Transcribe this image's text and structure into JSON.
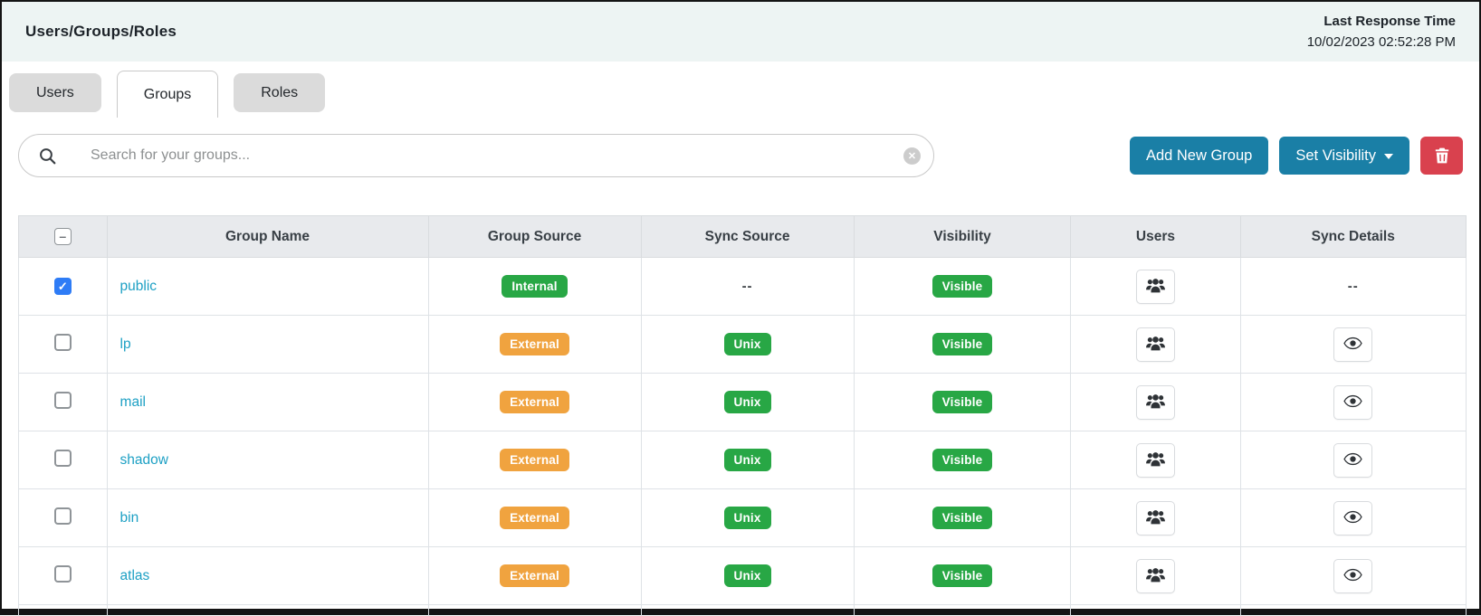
{
  "window": {
    "title": "Users/Groups/Roles"
  },
  "topbar": {
    "last_response_label": "Last Response Time",
    "last_response_value": "10/02/2023 02:52:28 PM"
  },
  "tabs": [
    {
      "label": "Users",
      "active": false
    },
    {
      "label": "Groups",
      "active": true
    },
    {
      "label": "Roles",
      "active": false
    }
  ],
  "toolbar": {
    "search_placeholder": "Search for your groups...",
    "search_value": "",
    "add_new_group_label": "Add New Group",
    "set_visibility_label": "Set Visibility",
    "icons": {
      "search": "search-icon",
      "clear": "clear-search-icon",
      "caret": "caret-down-icon",
      "trash": "trash-icon"
    }
  },
  "table": {
    "select_all_state": "indeterminate",
    "columns": [
      "Group Name",
      "Group Source",
      "Sync Source",
      "Visibility",
      "Users",
      "Sync Details"
    ],
    "rows": [
      {
        "group_name": "public",
        "selected": true,
        "group_source": "Internal",
        "sync_source": "--",
        "visibility": "Visible",
        "users": "users-group-icon",
        "sync_details": "--"
      },
      {
        "group_name": "lp",
        "selected": false,
        "group_source": "External",
        "sync_source": "Unix",
        "visibility": "Visible",
        "users": "users-group-icon",
        "sync_details": "eye-icon"
      },
      {
        "group_name": "mail",
        "selected": false,
        "group_source": "External",
        "sync_source": "Unix",
        "visibility": "Visible",
        "users": "users-group-icon",
        "sync_details": "eye-icon"
      },
      {
        "group_name": "shadow",
        "selected": false,
        "group_source": "External",
        "sync_source": "Unix",
        "visibility": "Visible",
        "users": "users-group-icon",
        "sync_details": "eye-icon"
      },
      {
        "group_name": "bin",
        "selected": false,
        "group_source": "External",
        "sync_source": "Unix",
        "visibility": "Visible",
        "users": "users-group-icon",
        "sync_details": "eye-icon"
      },
      {
        "group_name": "atlas",
        "selected": false,
        "group_source": "External",
        "sync_source": "Unix",
        "visibility": "Visible",
        "users": "users-group-icon",
        "sync_details": "eye-icon"
      }
    ]
  },
  "colors": {
    "accent_blue": "#1a7fa6",
    "danger_red": "#d9414e",
    "badge_green": "#28a745",
    "badge_orange": "#f0a33f",
    "link_teal": "#1da0c4",
    "checkbox_blue": "#2e7cf6"
  }
}
